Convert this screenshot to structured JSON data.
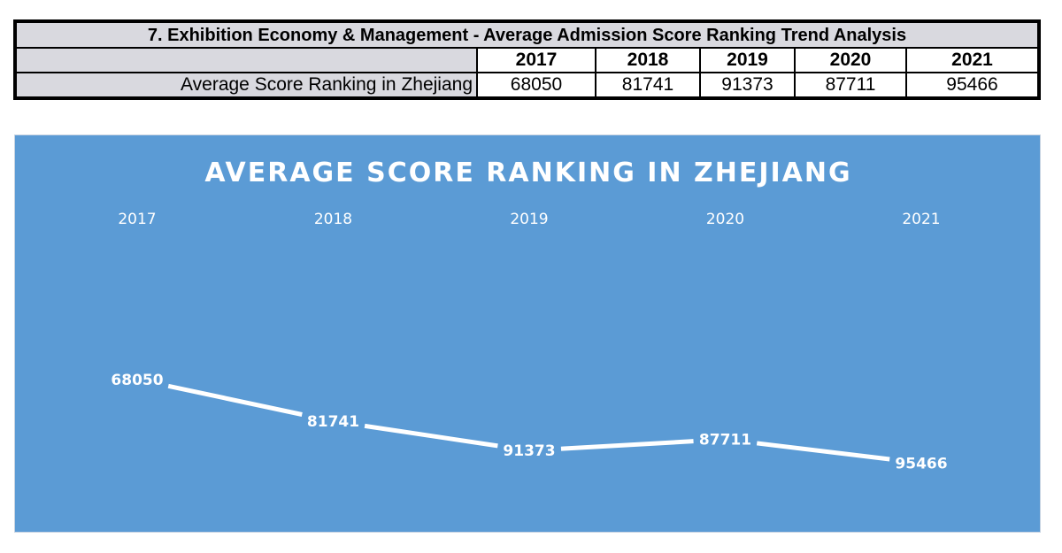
{
  "table": {
    "title": "7. Exhibition Economy & Management - Average Admission Score Ranking Trend Analysis",
    "row_label": "Average Score Ranking in Zhejiang",
    "years": [
      "2017",
      "2018",
      "2019",
      "2020",
      "2021"
    ],
    "values": [
      "68050",
      "81741",
      "91373",
      "87711",
      "95466"
    ]
  },
  "chart_data": {
    "type": "line",
    "title": "AVERAGE SCORE RANKING IN ZHEJIANG",
    "categories": [
      "2017",
      "2018",
      "2019",
      "2020",
      "2021"
    ],
    "series": [
      {
        "values": [
          68050,
          81741,
          91373,
          87711,
          95466
        ]
      }
    ],
    "y_inverted": true,
    "grid": false,
    "legend": "none",
    "colors": {
      "background": "#5b9bd5",
      "line": "#ffffff",
      "text": "#ffffff"
    }
  }
}
